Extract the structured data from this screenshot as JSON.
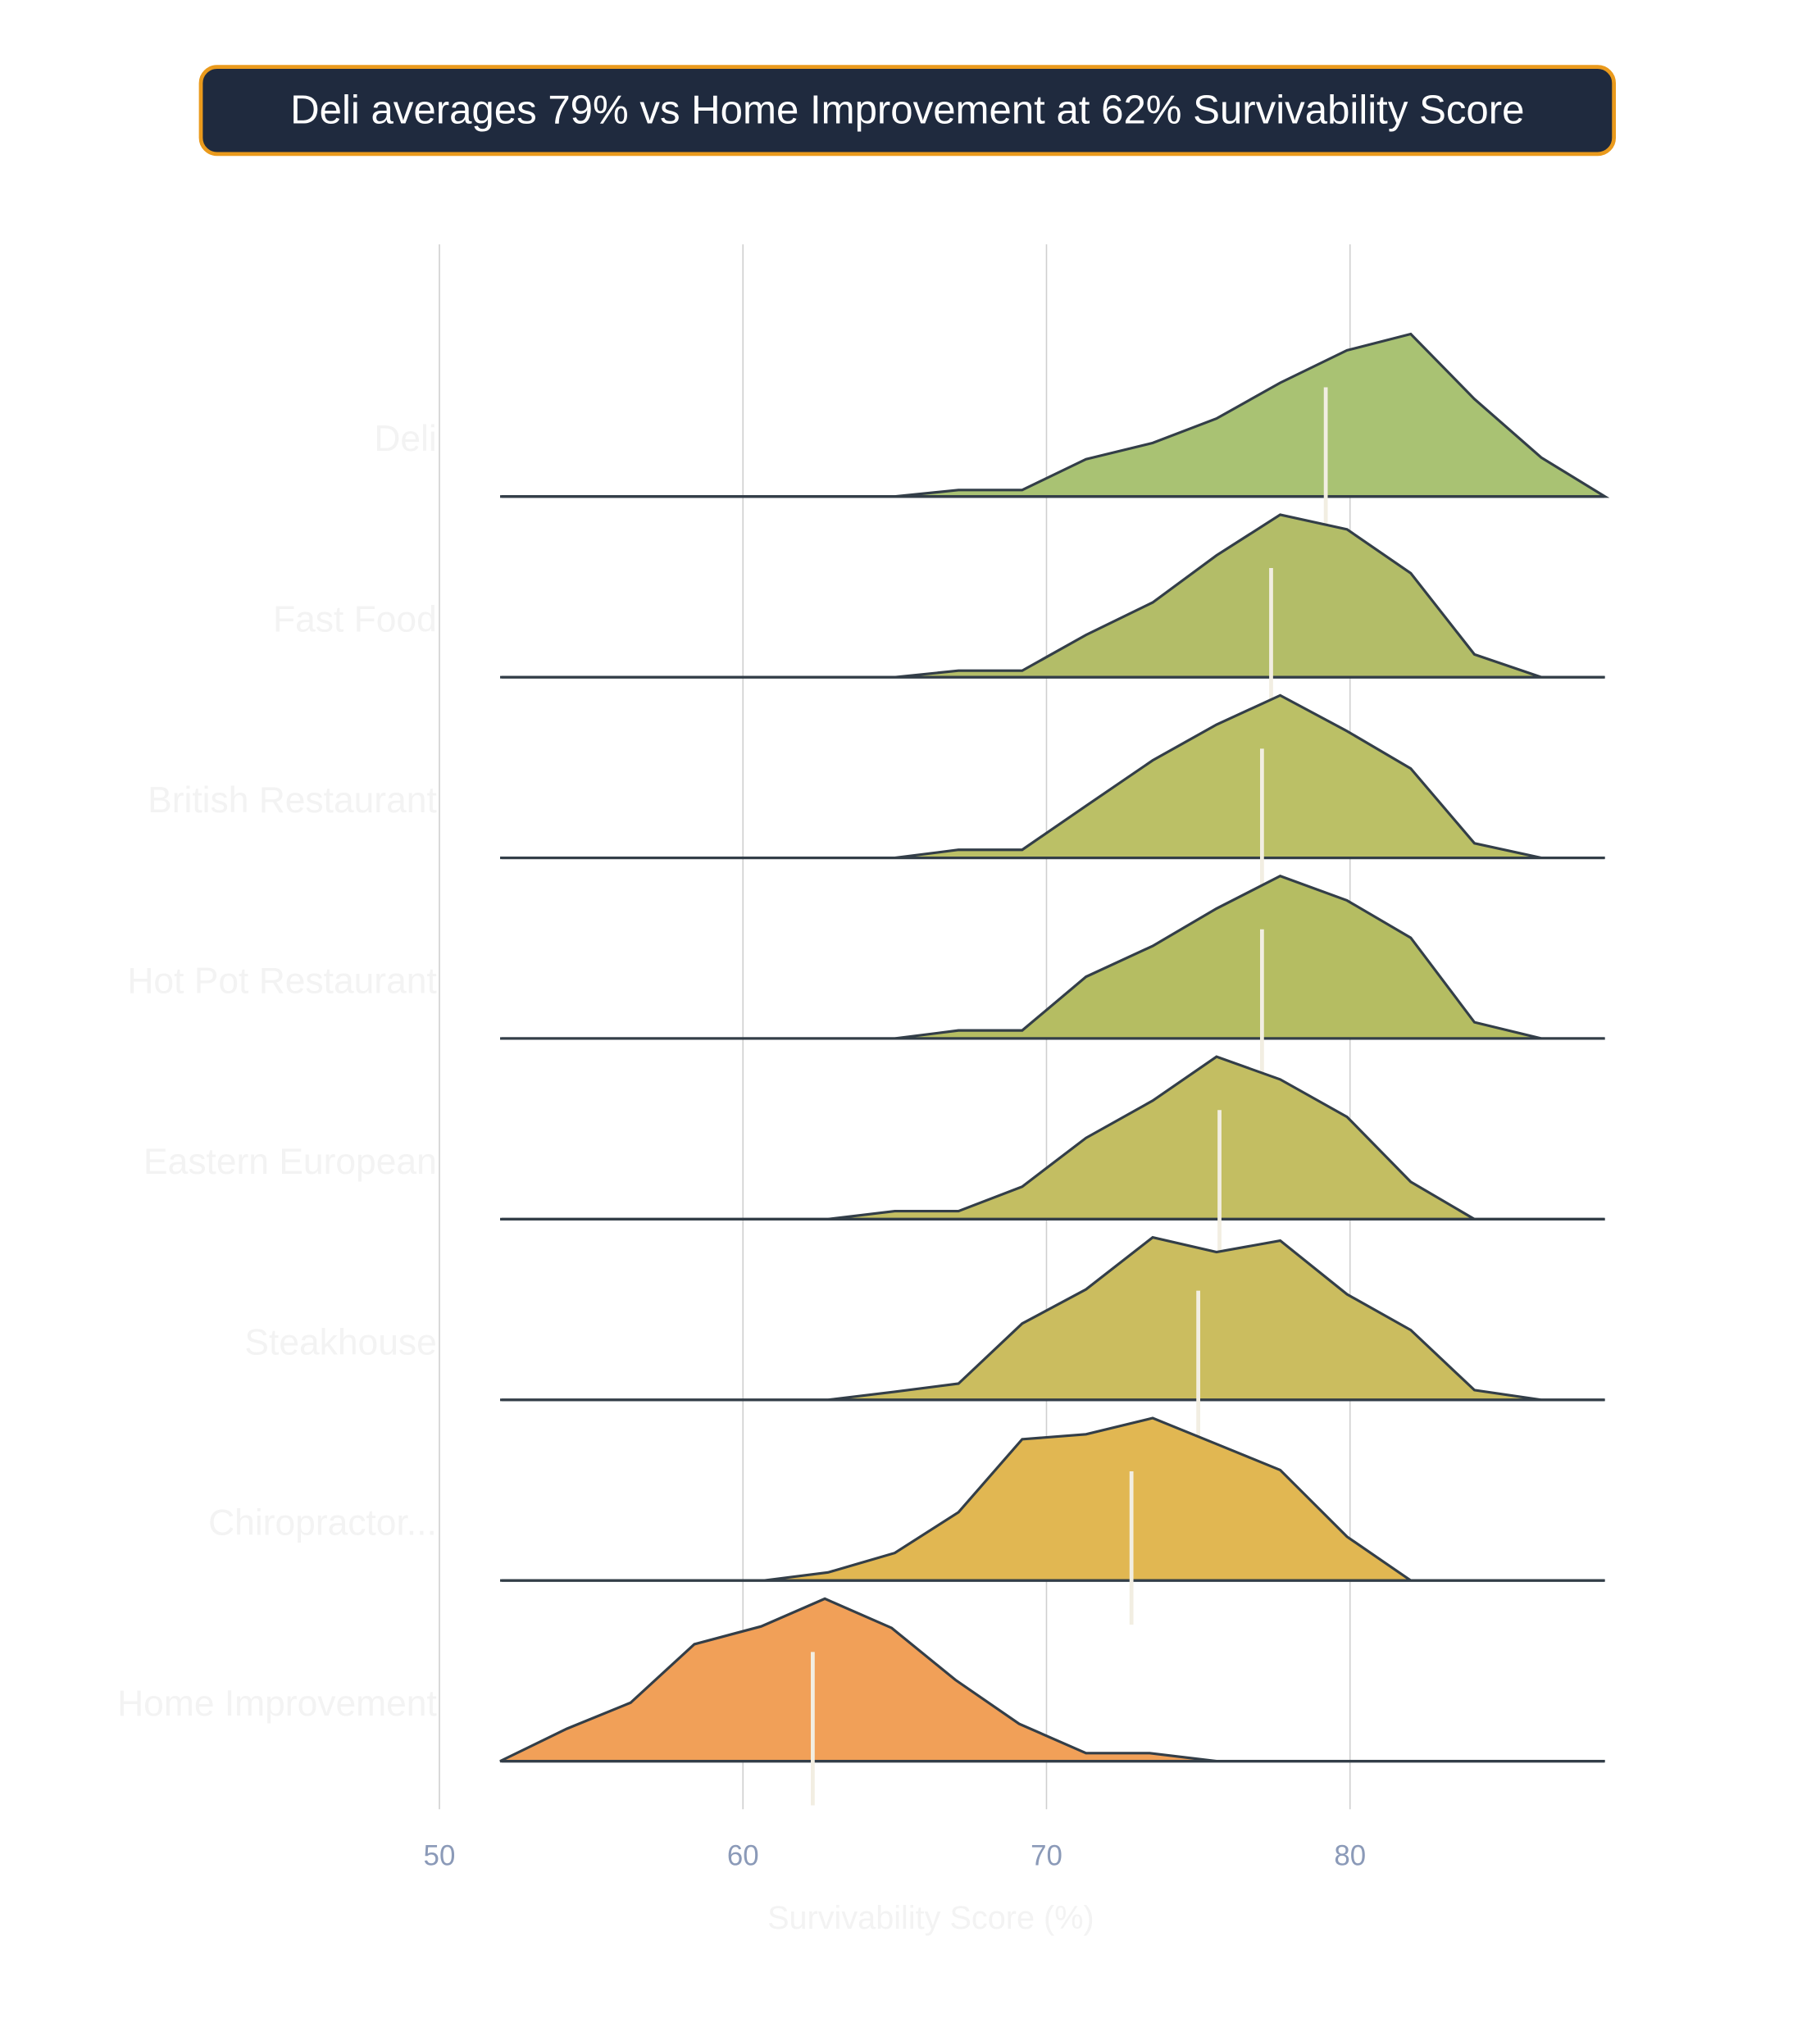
{
  "chart_data": {
    "type": "ridgeline",
    "title": "Deli averages 79% vs Home Improvement at 62% Survivability Score",
    "xlabel": "Survivability Score (%)",
    "ylabel": "",
    "xlim": [
      50,
      88.5
    ],
    "xticks": [
      50,
      60,
      70,
      80
    ],
    "grid": true,
    "colors": {
      "title_bg": "#1f2a3e",
      "title_border": "#ea9a1c",
      "outline": "#333e48",
      "mean_line": "#f2eee2",
      "tick_label": "#8b9ab8",
      "category_label": "#f3f3f3"
    },
    "series": [
      {
        "name": "Deli",
        "mean": 79.2,
        "fill": "#a9c273",
        "x": [
          52,
          65,
          67.1,
          69.2,
          71.3,
          73.5,
          75.6,
          77.7,
          79.9,
          82,
          84.1,
          86.3,
          88.4
        ],
        "density": [
          0,
          0,
          0.04,
          0.04,
          0.23,
          0.33,
          0.48,
          0.7,
          0.9,
          1,
          0.6,
          0.24,
          0
        ]
      },
      {
        "name": "Fast Food",
        "mean": 77.4,
        "fill": "#b3bd68",
        "x": [
          52,
          65,
          67.1,
          69.2,
          71.3,
          73.5,
          75.6,
          77.7,
          79.9,
          82,
          84.1,
          86.3,
          88.4
        ],
        "density": [
          0,
          0,
          0.04,
          0.04,
          0.26,
          0.46,
          0.75,
          1,
          0.91,
          0.64,
          0.14,
          0,
          0
        ]
      },
      {
        "name": "British Restaurant",
        "mean": 77.1,
        "fill": "#bbc066",
        "x": [
          52,
          65,
          67.1,
          69.2,
          71.3,
          73.5,
          75.6,
          77.7,
          79.9,
          82,
          84.1,
          86.3,
          88.4
        ],
        "density": [
          0,
          0,
          0.05,
          0.05,
          0.32,
          0.6,
          0.82,
          1,
          0.78,
          0.55,
          0.09,
          0,
          0
        ]
      },
      {
        "name": "Hot Pot Restaurant",
        "mean": 77.1,
        "fill": "#b5bd62",
        "x": [
          52,
          65,
          67.1,
          69.2,
          71.3,
          73.5,
          75.6,
          77.7,
          79.9,
          82,
          84.1,
          86.3,
          88.4
        ],
        "density": [
          0,
          0,
          0.05,
          0.05,
          0.38,
          0.57,
          0.8,
          1,
          0.85,
          0.62,
          0.1,
          0,
          0
        ]
      },
      {
        "name": "Eastern European",
        "mean": 75.7,
        "fill": "#c3be62",
        "x": [
          52,
          62.8,
          65,
          67.1,
          69.2,
          71.3,
          73.5,
          75.6,
          77.7,
          79.9,
          82,
          84.1,
          86.3,
          88.4
        ],
        "density": [
          0,
          0,
          0.05,
          0.05,
          0.2,
          0.5,
          0.73,
          1,
          0.86,
          0.63,
          0.23,
          0,
          0,
          0
        ]
      },
      {
        "name": "Steakhouse",
        "mean": 75,
        "fill": "#cbbd5f",
        "x": [
          52,
          62.8,
          65,
          67.1,
          69.2,
          71.3,
          73.5,
          75.6,
          77.7,
          79.9,
          82,
          84.1,
          86.3,
          88.4
        ],
        "density": [
          0,
          0,
          0.05,
          0.1,
          0.47,
          0.68,
          1,
          0.91,
          0.98,
          0.65,
          0.43,
          0.06,
          0,
          0
        ]
      },
      {
        "name": "Chiropractor...",
        "mean": 72.8,
        "fill": "#e1b752",
        "x": [
          52,
          60.7,
          62.8,
          65,
          67.1,
          69.2,
          71.3,
          73.5,
          75.6,
          77.7,
          79.9,
          82,
          84.1,
          86.3,
          88.4
        ],
        "density": [
          0,
          0,
          0.05,
          0.17,
          0.42,
          0.87,
          0.9,
          1,
          0.84,
          0.68,
          0.27,
          0,
          0,
          0,
          0
        ]
      },
      {
        "name": "Home Improvement",
        "mean": 62.3,
        "fill": "#f1a058",
        "x": [
          52,
          54.2,
          56.3,
          58.4,
          60.6,
          62.7,
          64.9,
          67,
          69.1,
          71.3,
          73.4,
          75.6,
          77.7,
          79.9,
          82,
          84.1,
          86.3,
          88.4
        ],
        "density": [
          0,
          0.2,
          0.36,
          0.72,
          0.83,
          1,
          0.82,
          0.5,
          0.23,
          0.05,
          0.05,
          0,
          0,
          0,
          0,
          0,
          0,
          0
        ]
      }
    ]
  }
}
